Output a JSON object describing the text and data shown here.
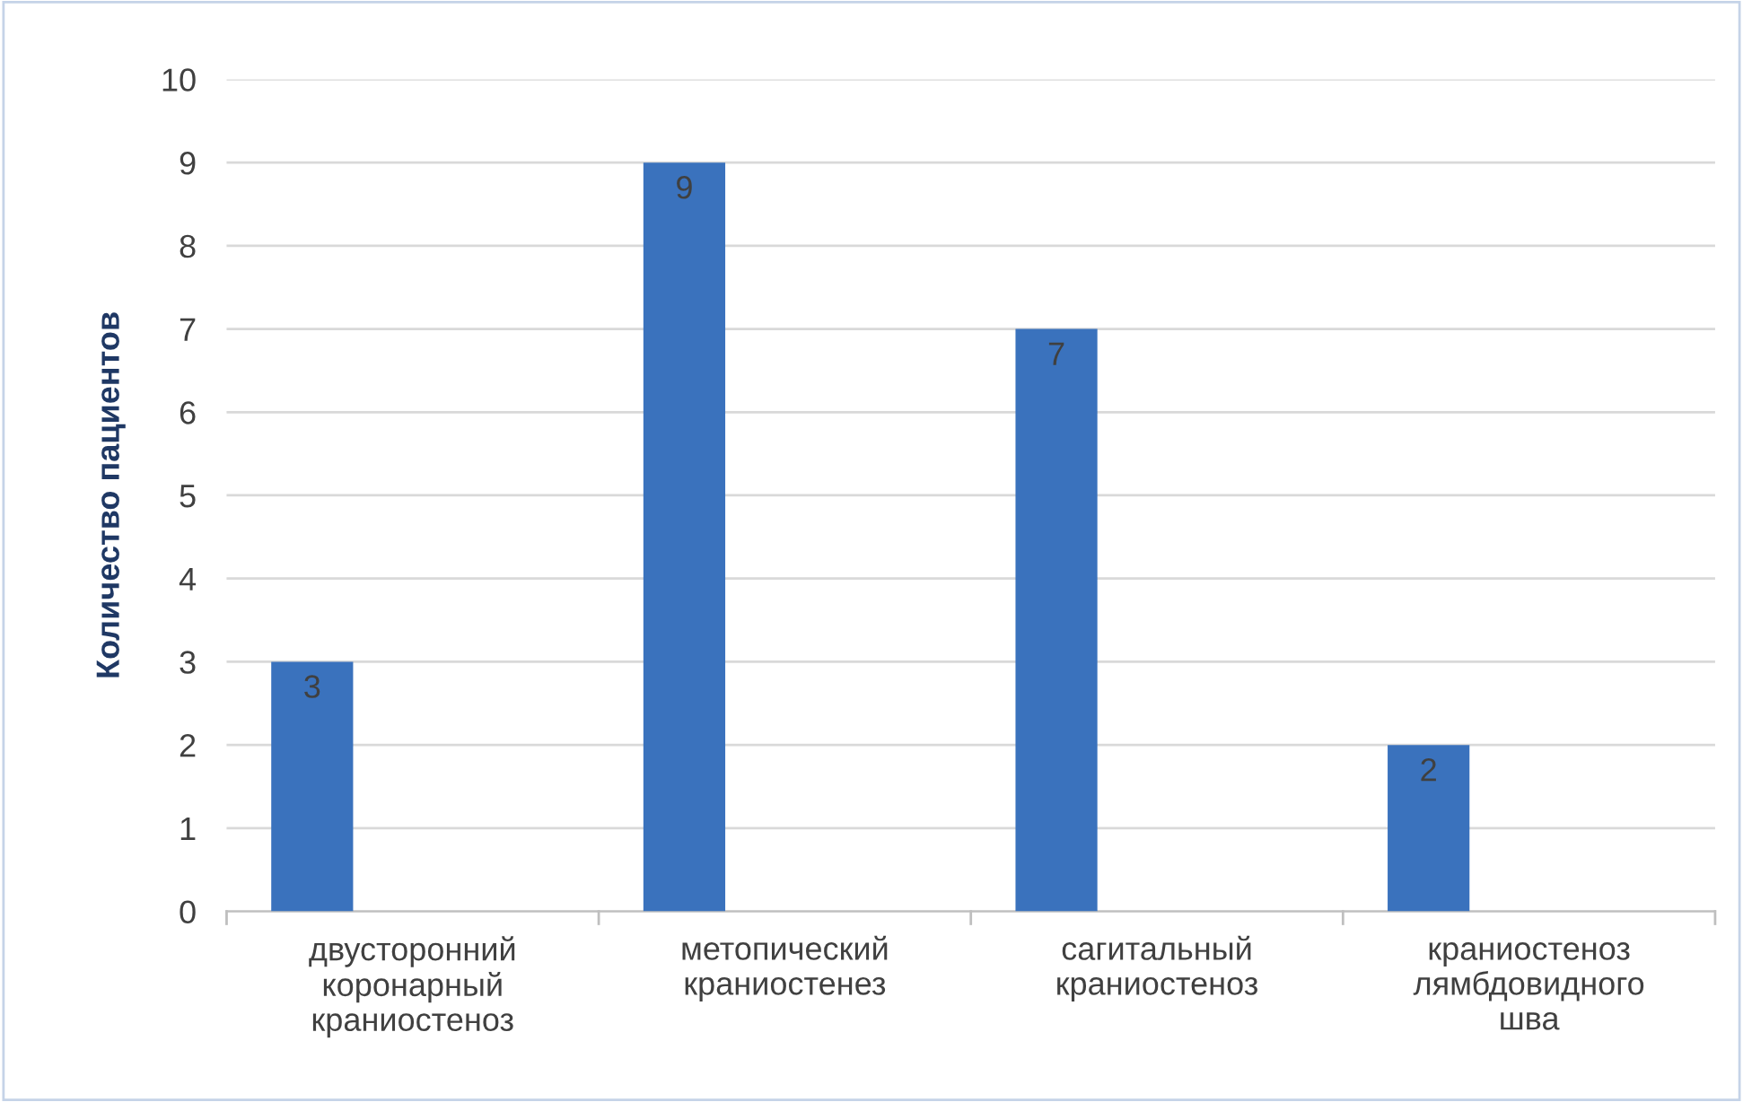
{
  "chart_data": {
    "type": "bar",
    "ylabel": "Количество пациентов",
    "categories": [
      "двусторонний\nкоронарный\nкраниостеноз",
      "метопический\nкраниостенез",
      "сагитальный\nкраниостеноз",
      "краниостеноз\nлямбдовидного\nшва"
    ],
    "values": [
      3,
      9,
      7,
      2
    ],
    "color": "#3a72bd",
    "ylim": [
      0,
      10
    ],
    "yticks": [
      0,
      1,
      2,
      3,
      4,
      5,
      6,
      7,
      8,
      9,
      10
    ],
    "grid": "y",
    "data_labels": true
  }
}
